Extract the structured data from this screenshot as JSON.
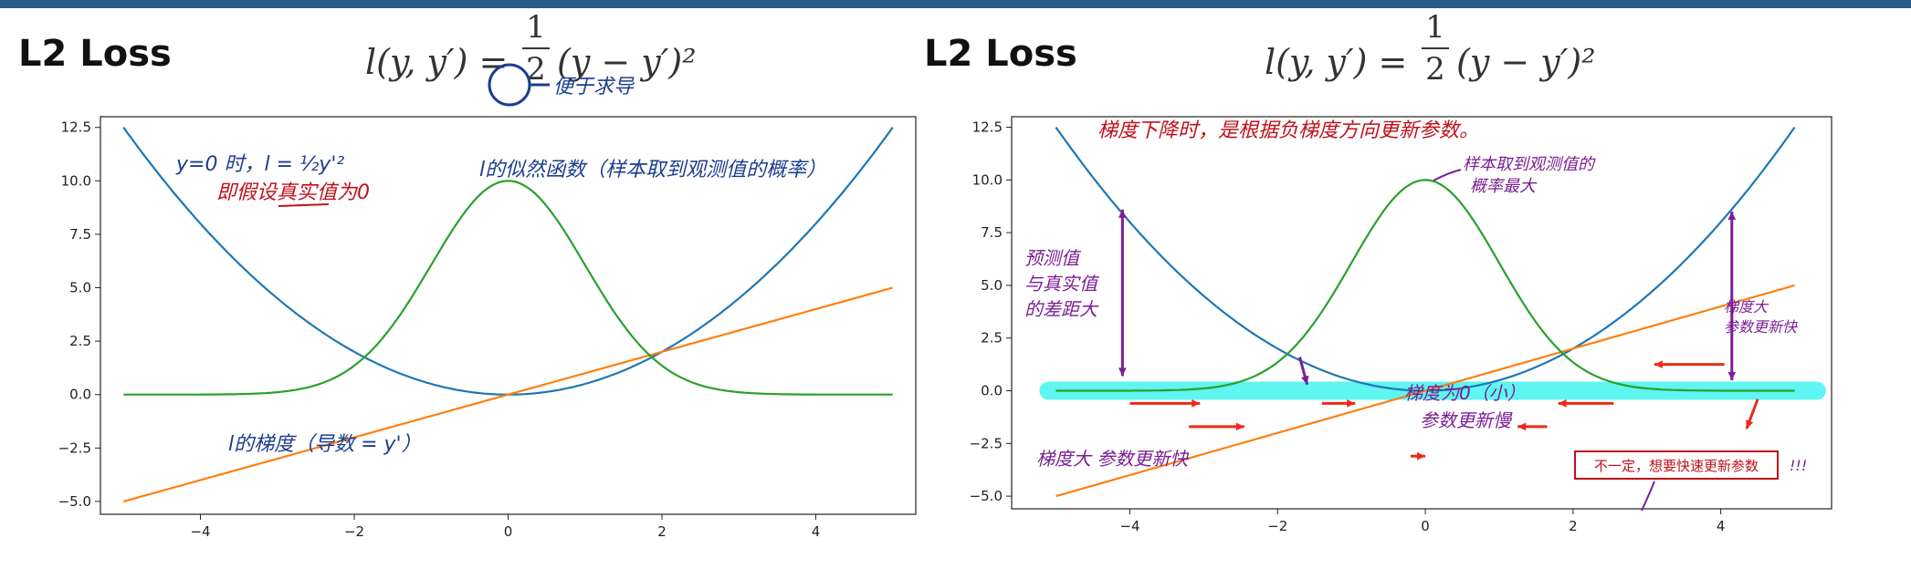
{
  "headings": [
    "L2 Loss",
    "L2 Loss"
  ],
  "formula": {
    "lhs": "l(y, y′) =",
    "num": "1",
    "den": "2",
    "rhs": "(y − y′)²"
  },
  "notes_left": {
    "circle_label": "便于求导",
    "top_left": "y=0 时，l = ½y'²",
    "top_left2": "即假设真实值为0",
    "likelihood": "l的似然函数（样本取到观测值的概率）",
    "gradient": "l的梯度（导数 = y'）"
  },
  "notes_right": {
    "top": "梯度下降时，是根据负梯度方向更新参数。",
    "peak": "样本取到观测值的",
    "peak2": "概率最大",
    "gap1": "预测值",
    "gap2": "与真实值",
    "gap3": "的差距大",
    "big_grad": "梯度大",
    "big_grad2": "参数更新快",
    "zero_grad": "梯度为0（小）",
    "zero_grad2": "参数更新慢",
    "bottom_left": "梯度大 参数更新快",
    "box": "不一定，想要快速更新参数",
    "box_marks": "!!!"
  },
  "colors": {
    "blue": "#1f77b4",
    "orange": "#ff7f0e",
    "green": "#2ca02c",
    "ink_blue": "#1d3d8f",
    "ink_red": "#c0101a",
    "ink_purple": "#7a1f93",
    "highlight": "#5ff5f0",
    "arrow_red": "#ee2a1a"
  },
  "chart_data": [
    {
      "type": "line",
      "title": "",
      "xlim": [
        -5.3,
        5.3
      ],
      "ylim": [
        -5.6,
        13.0
      ],
      "xticks": [
        -4,
        -2,
        0,
        2,
        4
      ],
      "yticks": [
        12.5,
        10.0,
        7.5,
        5.0,
        2.5,
        0.0,
        -2.5,
        -5.0
      ],
      "tick_labels_x": [
        "−4",
        "−2",
        "0",
        "2",
        "4"
      ],
      "tick_labels_y": [
        "12.5",
        "10.0",
        "7.5",
        "5.0",
        "2.5",
        "0.0",
        "−2.5",
        "−5.0"
      ],
      "x_range": [
        -5,
        5
      ],
      "series": [
        {
          "formula": "0.5*x^2",
          "color": "#1f77b4"
        },
        {
          "formula": "x",
          "color": "#ff7f0e"
        },
        {
          "formula": "10*exp(-x^2/2)",
          "color": "#2ca02c"
        }
      ]
    },
    {
      "type": "line",
      "title": "",
      "xlim": [
        -5.6,
        5.5
      ],
      "ylim": [
        -5.6,
        13.0
      ],
      "xticks": [
        -4,
        -2,
        0,
        2,
        4
      ],
      "yticks": [
        12.5,
        10.0,
        7.5,
        5.0,
        2.5,
        0.0,
        -2.5,
        -5.0
      ],
      "tick_labels_x": [
        "−4",
        "−2",
        "0",
        "2",
        "4"
      ],
      "tick_labels_y": [
        "12.5",
        "10.0",
        "7.5",
        "5.0",
        "2.5",
        "0.0",
        "−2.5",
        "−5.0"
      ],
      "x_range": [
        -5,
        5
      ],
      "series": [
        {
          "formula": "0.5*x^2",
          "color": "#1f77b4"
        },
        {
          "formula": "x",
          "color": "#ff7f0e"
        },
        {
          "formula": "10*exp(-x^2/2)",
          "color": "#2ca02c"
        }
      ]
    }
  ]
}
